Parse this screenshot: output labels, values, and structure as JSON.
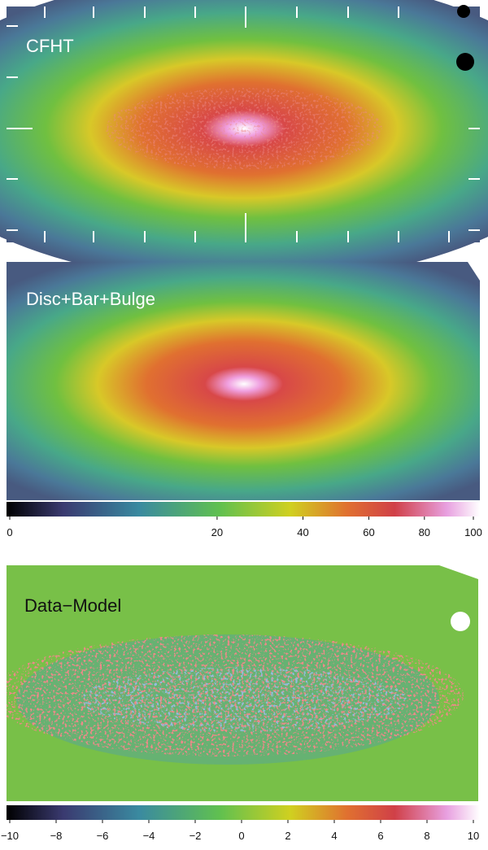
{
  "panels": [
    {
      "label": "CFHT"
    },
    {
      "label": "Disc+Bar+Bulge"
    },
    {
      "label": "Data−Model"
    }
  ],
  "colorbars": [
    {
      "range": [
        0,
        100
      ],
      "scale": "sqrt",
      "ticks": [
        0,
        20,
        40,
        60,
        80,
        100
      ]
    },
    {
      "range": [
        -10,
        10
      ],
      "scale": "linear",
      "ticks": [
        {
          "value": -10,
          "label": "−10"
        },
        {
          "value": -8,
          "label": "−8"
        },
        {
          "value": -6,
          "label": "−6"
        },
        {
          "value": -4,
          "label": "−4"
        },
        {
          "value": -2,
          "label": "−2"
        },
        0,
        2,
        4,
        6,
        8,
        10
      ]
    }
  ]
}
